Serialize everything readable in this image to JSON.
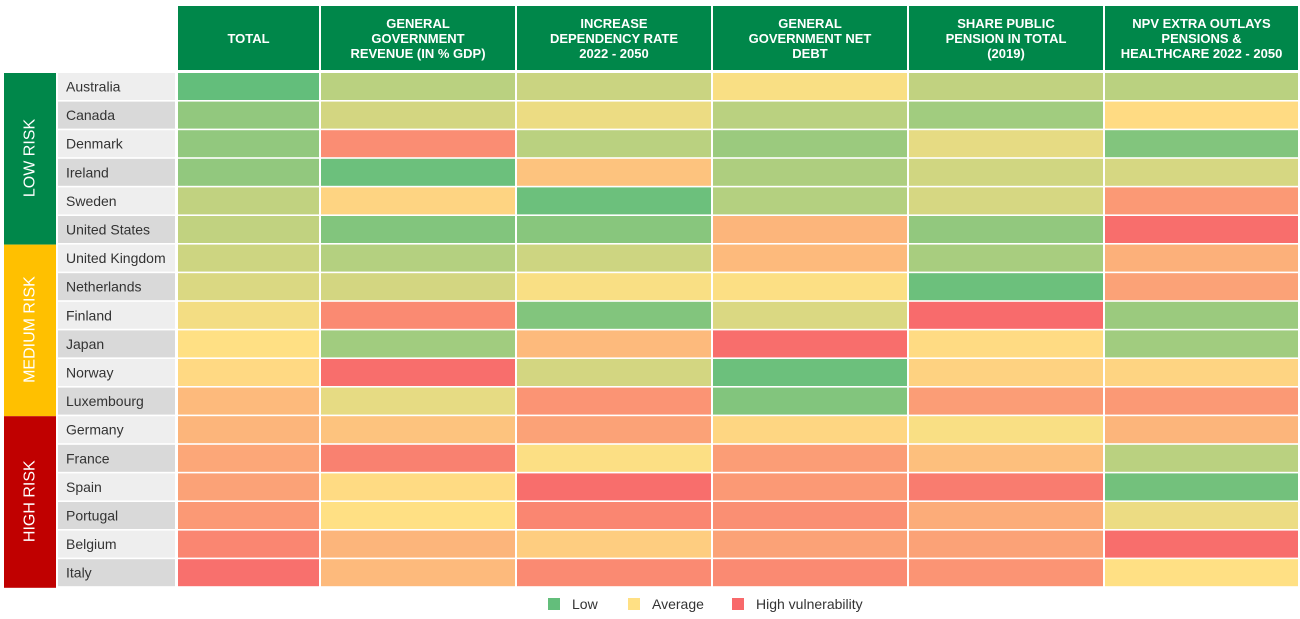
{
  "chart_data": {
    "type": "heatmap",
    "columns": [
      [
        "TOTAL"
      ],
      [
        "GENERAL",
        "GOVERNMENT",
        "REVENUE (IN % GDP)"
      ],
      [
        "INCREASE",
        "DEPENDENCY RATE",
        "2022 - 2050"
      ],
      [
        "GENERAL",
        "GOVERNMENT NET",
        "DEBT"
      ],
      [
        "SHARE PUBLIC",
        "PENSION IN TOTAL",
        "(2019)"
      ],
      [
        "NPV EXTRA OUTLAYS",
        "PENSIONS &",
        "HEALTHCARE 2022 - 2050"
      ]
    ],
    "groups": [
      {
        "label": "LOW RISK",
        "color": "#00874a",
        "rows": 6
      },
      {
        "label": "MEDIUM RISK",
        "color": "#ffc000",
        "rows": 6
      },
      {
        "label": "HIGH RISK",
        "color": "#c00000",
        "rows": 6
      }
    ],
    "rows": [
      "Australia",
      "Canada",
      "Denmark",
      "Ireland",
      "Sweden",
      "United States",
      "United Kingdom",
      "Netherlands",
      "Finland",
      "Japan",
      "Norway",
      "Luxembourg",
      "Germany",
      "France",
      "Spain",
      "Portugal",
      "Belgium",
      "Italy"
    ],
    "color_scale": {
      "low": "#63be7b",
      "average": "#ffe084",
      "high": "#f8696b"
    },
    "values": [
      [
        0.0,
        0.28,
        0.33,
        0.48,
        0.3,
        0.28
      ],
      [
        0.15,
        0.36,
        0.44,
        0.28,
        0.2,
        0.52
      ],
      [
        0.15,
        0.85,
        0.28,
        0.18,
        0.42,
        0.1
      ],
      [
        0.15,
        0.03,
        0.62,
        0.24,
        0.35,
        0.37
      ],
      [
        0.3,
        0.55,
        0.03,
        0.26,
        0.37,
        0.8
      ],
      [
        0.3,
        0.1,
        0.12,
        0.68,
        0.15,
        0.98
      ],
      [
        0.34,
        0.26,
        0.34,
        0.66,
        0.22,
        0.7
      ],
      [
        0.38,
        0.36,
        0.48,
        0.49,
        0.03,
        0.76
      ],
      [
        0.46,
        0.86,
        0.1,
        0.38,
        0.99,
        0.18
      ],
      [
        0.5,
        0.2,
        0.66,
        0.98,
        0.52,
        0.2
      ],
      [
        0.53,
        0.98,
        0.36,
        0.03,
        0.56,
        0.55
      ],
      [
        0.66,
        0.42,
        0.82,
        0.1,
        0.78,
        0.8
      ],
      [
        0.68,
        0.62,
        0.76,
        0.54,
        0.48,
        0.68
      ],
      [
        0.74,
        0.9,
        0.49,
        0.78,
        0.64,
        0.28
      ],
      [
        0.76,
        0.52,
        0.98,
        0.8,
        0.92,
        0.05
      ],
      [
        0.8,
        0.5,
        0.88,
        0.84,
        0.72,
        0.44
      ],
      [
        0.88,
        0.68,
        0.58,
        0.76,
        0.76,
        0.98
      ],
      [
        0.97,
        0.66,
        0.86,
        0.86,
        0.82,
        0.5
      ]
    ],
    "legend": [
      {
        "label": "Low",
        "color": "#63be7b"
      },
      {
        "label": "Average",
        "color": "#ffe084"
      },
      {
        "label": "High vulnerability",
        "color": "#f8696b"
      }
    ]
  }
}
